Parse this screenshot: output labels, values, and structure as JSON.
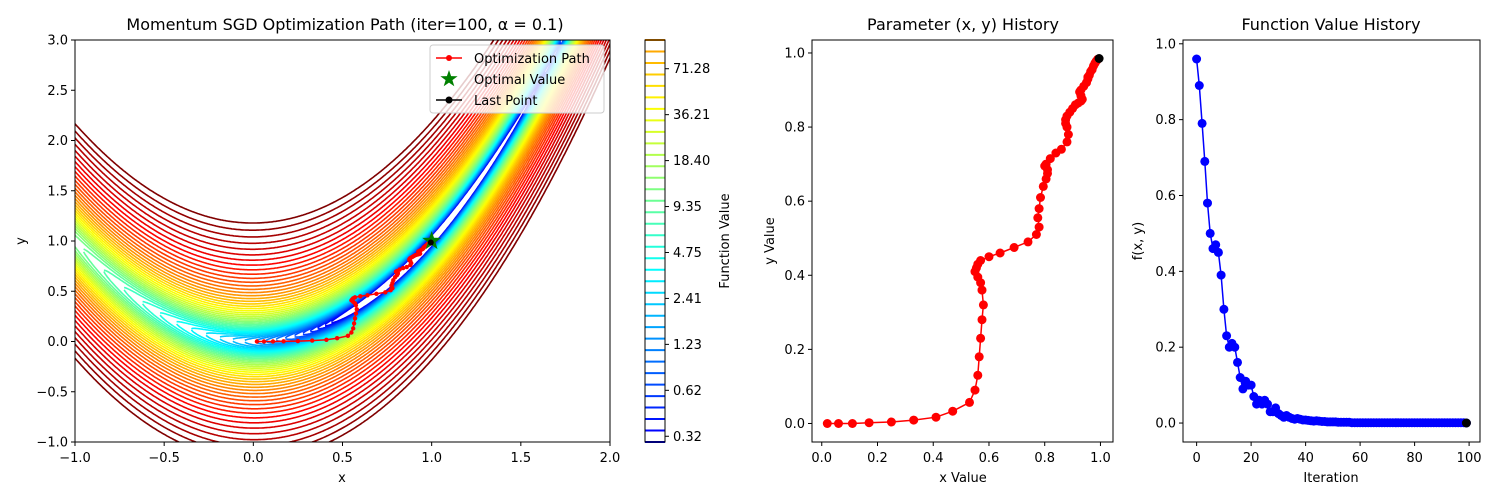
{
  "chart_data": [
    {
      "type": "contour",
      "title": "Momentum SGD Optimization Path (iter=100, α = 0.1)",
      "xlabel": "x",
      "ylabel": "y",
      "xlim": [
        -1.0,
        2.0
      ],
      "ylim": [
        -1.0,
        3.0
      ],
      "x_ticks": [
        "−1.0",
        "−0.5",
        "0.0",
        "0.5",
        "1.0",
        "1.5",
        "2.0"
      ],
      "y_ticks": [
        "−1.0",
        "−0.5",
        "0.0",
        "0.5",
        "1.0",
        "1.5",
        "2.0",
        "2.5",
        "3.0"
      ],
      "function": "rosenbrock",
      "colorbar": {
        "label": "Function Value",
        "tick_labels": [
          "0.32",
          "0.62",
          "1.23",
          "2.41",
          "4.75",
          "9.35",
          "18.40",
          "36.21",
          "71.28"
        ],
        "min": 0.32,
        "max": 140.0
      },
      "legend": {
        "position": "upper right",
        "entries": [
          {
            "label": "Optimization Path",
            "color": "#ff0000",
            "marker": "dot-line"
          },
          {
            "label": "Optimal Value",
            "color": "#008000",
            "marker": "star"
          },
          {
            "label": "Last Point",
            "color": "#000000",
            "marker": "dot-line"
          }
        ]
      },
      "optimal_point": [
        1.0,
        1.0
      ]
    },
    {
      "type": "line",
      "title": "Parameter (x, y) History",
      "xlabel": "x Value",
      "ylabel": "y Value",
      "xlim": [
        -0.035,
        1.045
      ],
      "ylim": [
        -0.05,
        1.035
      ],
      "x_ticks": [
        "0.0",
        "0.2",
        "0.4",
        "0.6",
        "0.8",
        "1.0"
      ],
      "y_ticks": [
        "0.0",
        "0.2",
        "0.4",
        "0.6",
        "0.8",
        "1.0"
      ],
      "series": [
        {
          "color": "#ff0000",
          "x": [
            0.02,
            0.06,
            0.11,
            0.17,
            0.25,
            0.33,
            0.41,
            0.47,
            0.53,
            0.55,
            0.56,
            0.565,
            0.57,
            0.575,
            0.58,
            0.575,
            0.57,
            0.56,
            0.55,
            0.555,
            0.56,
            0.57,
            0.6,
            0.64,
            0.69,
            0.74,
            0.77,
            0.78,
            0.775,
            0.78,
            0.785,
            0.795,
            0.805,
            0.81,
            0.81,
            0.8,
            0.805,
            0.82,
            0.84,
            0.86,
            0.88,
            0.885,
            0.88,
            0.875,
            0.875,
            0.88,
            0.89,
            0.9,
            0.91,
            0.92,
            0.93,
            0.935,
            0.93,
            0.925,
            0.93,
            0.94,
            0.95,
            0.955,
            0.955,
            0.96,
            0.965,
            0.97,
            0.975,
            0.98,
            0.985,
            0.99
          ],
          "y": [
            0.0,
            0.0,
            0.0,
            0.002,
            0.004,
            0.009,
            0.017,
            0.033,
            0.057,
            0.09,
            0.13,
            0.18,
            0.23,
            0.28,
            0.32,
            0.36,
            0.38,
            0.395,
            0.41,
            0.42,
            0.43,
            0.44,
            0.45,
            0.46,
            0.475,
            0.49,
            0.51,
            0.53,
            0.555,
            0.58,
            0.61,
            0.64,
            0.66,
            0.675,
            0.685,
            0.695,
            0.7,
            0.715,
            0.73,
            0.74,
            0.76,
            0.78,
            0.8,
            0.81,
            0.82,
            0.83,
            0.84,
            0.85,
            0.86,
            0.865,
            0.87,
            0.875,
            0.885,
            0.895,
            0.9,
            0.91,
            0.92,
            0.93,
            0.935,
            0.94,
            0.95,
            0.955,
            0.965,
            0.972,
            0.978,
            0.983
          ]
        }
      ],
      "last_point": [
        0.995,
        0.985
      ]
    },
    {
      "type": "line",
      "title": "Function Value History",
      "xlabel": "Iteration",
      "ylabel": "f(x, y)",
      "xlim": [
        -5,
        104
      ],
      "ylim": [
        -0.05,
        1.01
      ],
      "x_ticks": [
        "0",
        "20",
        "40",
        "60",
        "80",
        "100"
      ],
      "y_ticks": [
        "0.0",
        "0.2",
        "0.4",
        "0.6",
        "0.8",
        "1.0"
      ],
      "series": [
        {
          "color": "#0000ff",
          "x": [
            0,
            1,
            2,
            3,
            4,
            5,
            6,
            7,
            8,
            9,
            10,
            11,
            12,
            13,
            14,
            15,
            16,
            17,
            18,
            19,
            20,
            21,
            22,
            23,
            24,
            25,
            26,
            27,
            28,
            29,
            30,
            31,
            32,
            33,
            34,
            35,
            36,
            37,
            38,
            39,
            40,
            41,
            42,
            43,
            44,
            45,
            46,
            47,
            48,
            49,
            50,
            51,
            52,
            53,
            54,
            55,
            56,
            57,
            58,
            59,
            60,
            61,
            62,
            63,
            64,
            65,
            66,
            67,
            68,
            69,
            70,
            71,
            72,
            73,
            74,
            75,
            76,
            77,
            78,
            79,
            80,
            81,
            82,
            83,
            84,
            85,
            86,
            87,
            88,
            89,
            90,
            91,
            92,
            93,
            94,
            95,
            96,
            97,
            98,
            99
          ],
          "y": [
            0.96,
            0.89,
            0.79,
            0.69,
            0.58,
            0.5,
            0.46,
            0.47,
            0.45,
            0.39,
            0.3,
            0.23,
            0.2,
            0.21,
            0.2,
            0.16,
            0.12,
            0.09,
            0.11,
            0.1,
            0.1,
            0.07,
            0.05,
            0.06,
            0.05,
            0.06,
            0.05,
            0.03,
            0.03,
            0.04,
            0.025,
            0.02,
            0.015,
            0.02,
            0.015,
            0.012,
            0.01,
            0.012,
            0.01,
            0.008,
            0.008,
            0.007,
            0.006,
            0.005,
            0.006,
            0.005,
            0.004,
            0.004,
            0.003,
            0.003,
            0.003,
            0.003,
            0.002,
            0.002,
            0.002,
            0.002,
            0.002,
            0.001,
            0.001,
            0.001,
            0.001,
            0.001,
            0.001,
            0.001,
            0.001,
            0.001,
            0.001,
            0.001,
            0.001,
            0.001,
            0.001,
            0.001,
            0.001,
            0.001,
            0.001,
            0.001,
            0.001,
            0.001,
            0.001,
            0.001,
            0.001,
            0.001,
            0.001,
            0.001,
            0.001,
            0.001,
            0.001,
            0.001,
            0.001,
            0.001,
            0.001,
            0.001,
            0.001,
            0.001,
            0.001,
            0.001,
            0.001,
            0.001,
            0.001,
            0.0
          ]
        }
      ],
      "last_point": [
        99,
        0.0
      ]
    }
  ]
}
